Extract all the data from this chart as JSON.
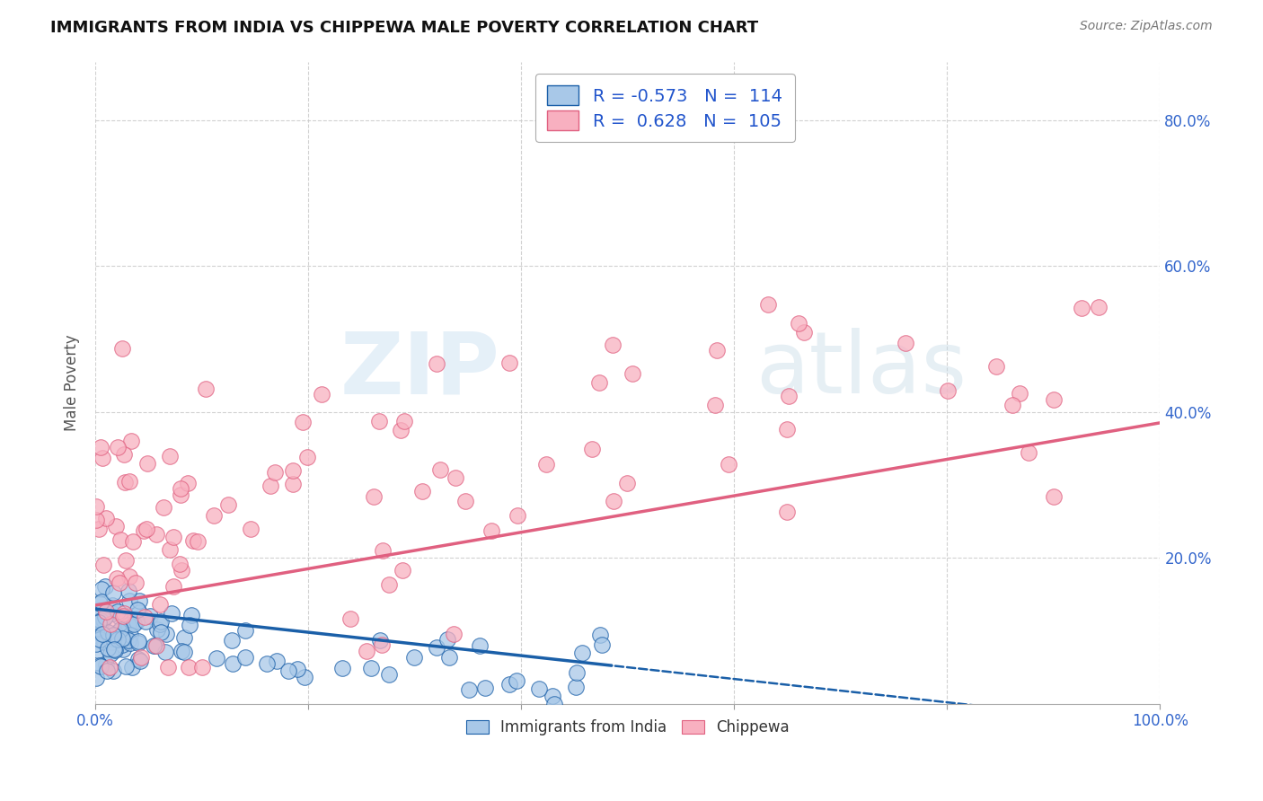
{
  "title": "IMMIGRANTS FROM INDIA VS CHIPPEWA MALE POVERTY CORRELATION CHART",
  "source": "Source: ZipAtlas.com",
  "ylabel": "Male Poverty",
  "ytick_labels": [
    "20.0%",
    "40.0%",
    "60.0%",
    "80.0%"
  ],
  "ytick_values": [
    0.2,
    0.4,
    0.6,
    0.8
  ],
  "xlim": [
    0.0,
    1.0
  ],
  "ylim": [
    0.0,
    0.88
  ],
  "legend_r_india": "-0.573",
  "legend_n_india": "114",
  "legend_r_chippewa": "0.628",
  "legend_n_chippewa": "105",
  "color_india": "#a8c8e8",
  "color_chippewa": "#f8b0c0",
  "line_color_india": "#1a5fa8",
  "line_color_chippewa": "#e06080",
  "watermark_zip": "ZIP",
  "watermark_atlas": "atlas",
  "background_color": "#ffffff",
  "grid_color": "#cccccc",
  "seed": 12345
}
